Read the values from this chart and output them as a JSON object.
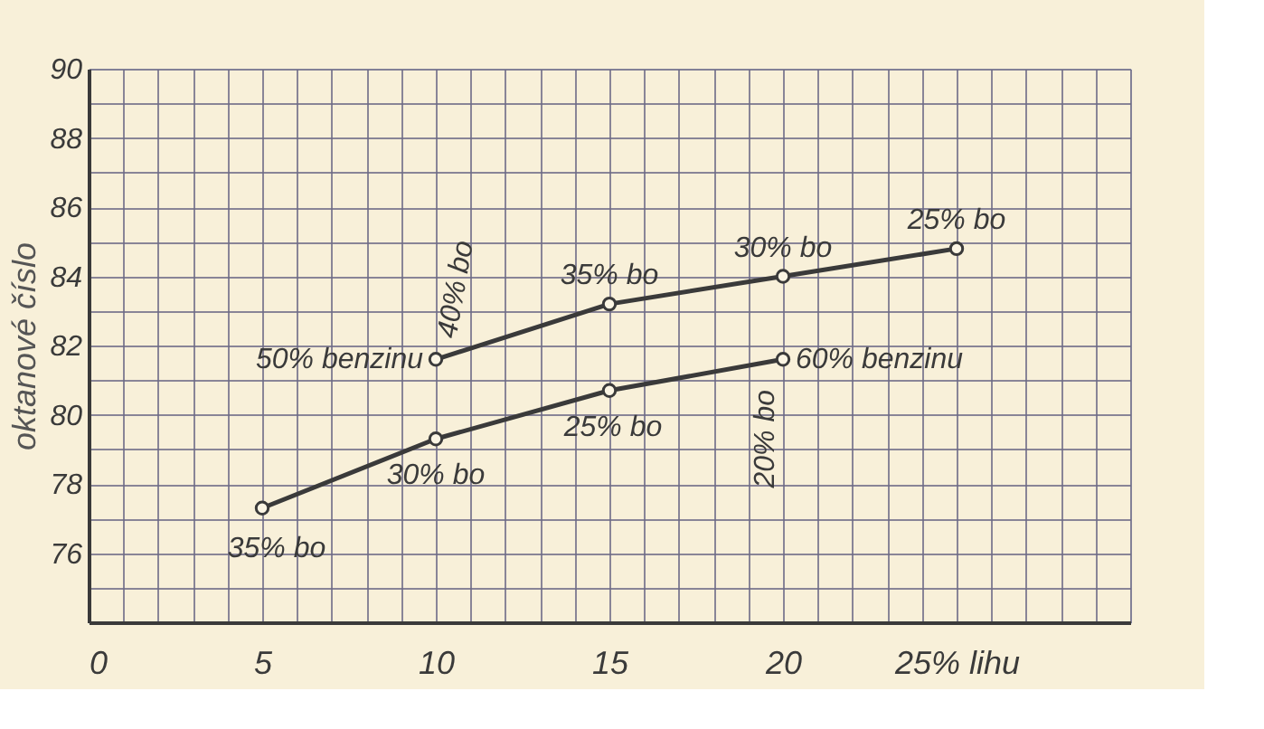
{
  "chart_data": {
    "type": "line",
    "ylabel": "oktanové číslo",
    "xlim": [
      0,
      30
    ],
    "ylim": [
      74,
      90
    ],
    "xticks": [
      0,
      {
        "value": 1,
        "label": null
      },
      {
        "value": 2,
        "label": null
      },
      {
        "value": 3,
        "label": null
      },
      {
        "value": 4,
        "label": null
      },
      5,
      {
        "value": 6,
        "label": null
      },
      {
        "value": 7,
        "label": null
      },
      {
        "value": 8,
        "label": null
      },
      {
        "value": 9,
        "label": null
      },
      10,
      {
        "value": 11,
        "label": null
      },
      {
        "value": 12,
        "label": null
      },
      {
        "value": 13,
        "label": null
      },
      {
        "value": 14,
        "label": null
      },
      15,
      {
        "value": 16,
        "label": null
      },
      {
        "value": 17,
        "label": null
      },
      {
        "value": 18,
        "label": null
      },
      {
        "value": 19,
        "label": null
      },
      20,
      {
        "value": 21,
        "label": null
      },
      {
        "value": 22,
        "label": null
      },
      {
        "value": 23,
        "label": null
      },
      {
        "value": 24,
        "label": null
      },
      {
        "value": 25,
        "label": "25% lihu"
      },
      {
        "value": 26,
        "label": null
      },
      {
        "value": 27,
        "label": null
      },
      {
        "value": 28,
        "label": null
      },
      {
        "value": 29,
        "label": null
      },
      {
        "value": 30,
        "label": null
      }
    ],
    "yticks": [
      {
        "value": 74,
        "label": null
      },
      {
        "value": 75,
        "label": null
      },
      76,
      {
        "value": 77,
        "label": null
      },
      78,
      {
        "value": 79,
        "label": null
      },
      80,
      {
        "value": 81,
        "label": null
      },
      82,
      {
        "value": 83,
        "label": null
      },
      84,
      {
        "value": 85,
        "label": null
      },
      86,
      {
        "value": 87,
        "label": null
      },
      88,
      {
        "value": 89,
        "label": null
      },
      90
    ],
    "grid": true,
    "marker": "circle",
    "line_style": "solid",
    "series": [
      {
        "color": "#3a3a3a",
        "x": [
          10,
          15,
          20,
          25
        ],
        "values": [
          81.6,
          83.2,
          84.0,
          84.8
        ]
      },
      {
        "color": "#3a3a3a",
        "x": [
          5,
          10,
          15,
          20
        ],
        "values": [
          77.3,
          79.3,
          80.7,
          81.6
        ]
      }
    ],
    "annotations": [
      {
        "text": "35% bo",
        "x": 5,
        "y": 77.3
      },
      {
        "text": "30% bo",
        "x": 10,
        "y": 79.3
      },
      {
        "text": "25% bo",
        "x": 15,
        "y": 80.7
      },
      {
        "text": "20% bo",
        "x": 20,
        "y": 81.6
      },
      {
        "text": "60% benzinu",
        "x": 20,
        "y": 81.6
      },
      {
        "text": "50% benzinu",
        "x": 10,
        "y": 81.6
      },
      {
        "text": "40% bo",
        "x": 10,
        "y": 81.6
      },
      {
        "text": "35% bo",
        "x": 15,
        "y": 83.2
      },
      {
        "text": "30% bo",
        "x": 20,
        "y": 84.0
      },
      {
        "text": "25% bo",
        "x": 25,
        "y": 84.8
      }
    ]
  }
}
